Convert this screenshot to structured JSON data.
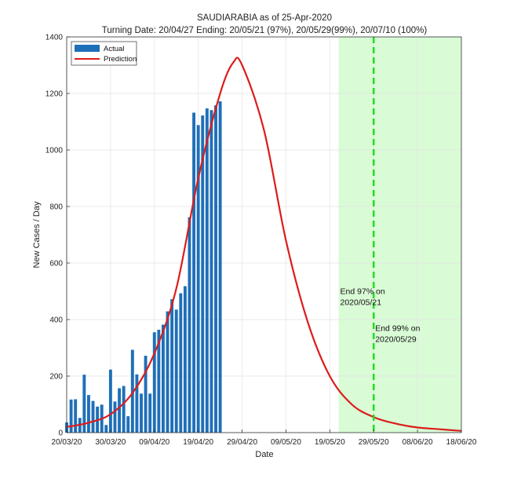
{
  "chart_data": {
    "type": "bar",
    "title": "SAUDIARABIA as of 25-Apr-2020",
    "subtitle": "Turning Date: 20/04/27  Ending: 20/05/21 (97%), 20/05/29(99%), 20/07/10 (100%)",
    "xlabel": "Date",
    "ylabel": "New Cases / Day",
    "ylim": [
      0,
      1400
    ],
    "yticks": [
      0,
      200,
      400,
      600,
      800,
      1000,
      1200,
      1400
    ],
    "xlim": [
      "2020-03-20",
      "2020-06-18"
    ],
    "xticks": [
      "2020-03-20",
      "2020-03-30",
      "2020-04-09",
      "2020-04-19",
      "2020-04-29",
      "2020-05-09",
      "2020-05-19",
      "2020-05-29",
      "2020-06-08",
      "2020-06-18"
    ],
    "xtick_labels": [
      "20/03/20",
      "30/03/20",
      "09/04/20",
      "19/04/20",
      "29/04/20",
      "09/05/20",
      "19/05/20",
      "29/05/20",
      "08/06/20",
      "18/06/20"
    ],
    "grid": true,
    "legend_position": "top-left",
    "series": [
      {
        "name": "Actual",
        "kind": "bar",
        "color": "#1f6fb8",
        "x": [
          "2020-03-20",
          "2020-03-21",
          "2020-03-22",
          "2020-03-23",
          "2020-03-24",
          "2020-03-25",
          "2020-03-26",
          "2020-03-27",
          "2020-03-28",
          "2020-03-29",
          "2020-03-30",
          "2020-03-31",
          "2020-04-01",
          "2020-04-02",
          "2020-04-03",
          "2020-04-04",
          "2020-04-05",
          "2020-04-06",
          "2020-04-07",
          "2020-04-08",
          "2020-04-09",
          "2020-04-10",
          "2020-04-11",
          "2020-04-12",
          "2020-04-13",
          "2020-04-14",
          "2020-04-15",
          "2020-04-16",
          "2020-04-17",
          "2020-04-18",
          "2020-04-19",
          "2020-04-20",
          "2020-04-21",
          "2020-04-22",
          "2020-04-23",
          "2020-04-24",
          "2020-04-25"
        ],
        "values": [
          36,
          117,
          118,
          52,
          205,
          133,
          112,
          92,
          99,
          27,
          223,
          110,
          157,
          165,
          58,
          293,
          206,
          138,
          272,
          138,
          355,
          364,
          382,
          429,
          472,
          435,
          493,
          518,
          762,
          1132,
          1088,
          1122,
          1147,
          1141,
          1158,
          1172,
          0
        ]
      },
      {
        "name": "Prediction",
        "kind": "line",
        "color": "#dd1c1c",
        "x": [
          "2020-03-20",
          "2020-03-25",
          "2020-03-30",
          "2020-04-04",
          "2020-04-09",
          "2020-04-14",
          "2020-04-19",
          "2020-04-24",
          "2020-04-27",
          "2020-04-29",
          "2020-05-04",
          "2020-05-09",
          "2020-05-14",
          "2020-05-19",
          "2020-05-24",
          "2020-05-29",
          "2020-06-03",
          "2020-06-08",
          "2020-06-13",
          "2020-06-18"
        ],
        "values": [
          20,
          35,
          65,
          140,
          280,
          510,
          900,
          1200,
          1310,
          1300,
          1070,
          680,
          390,
          200,
          100,
          55,
          32,
          18,
          12,
          6
        ]
      }
    ],
    "shaded_region": {
      "from": "2020-05-21",
      "to": "2020-06-18",
      "color": "#d9fbd6"
    },
    "vline": {
      "x": "2020-05-29",
      "color": "#22dd22",
      "style": "dashed"
    },
    "annotations": [
      {
        "text_lines": [
          "End 97% on",
          "2020/05/21"
        ],
        "x": "2020-05-21",
        "y": 490
      },
      {
        "text_lines": [
          "End 99% on",
          "2020/05/29"
        ],
        "x": "2020-05-29",
        "y": 360
      }
    ]
  }
}
